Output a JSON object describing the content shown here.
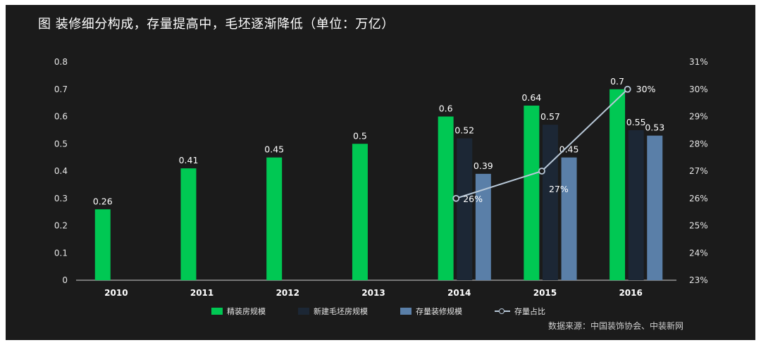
{
  "title": "图  装修细分构成，存量提高中，毛坯逐渐降低（单位：万亿）",
  "source": "数据来源：中国装饰协会、中装新网",
  "colors": {
    "background": "#1b1b1b",
    "jingzhuang": "#00c853",
    "maopi": "#1c2735",
    "cunliang": "#5a7fa8",
    "ratio_line": "#b8c8d8",
    "text": "#ffffff"
  },
  "legend": [
    {
      "label": "精装房规模",
      "color": "#00c853"
    },
    {
      "label": "新建毛坯房规模",
      "color": "#1c2735"
    },
    {
      "label": "存量装修规模",
      "color": "#5a7fa8"
    },
    {
      "label": "存量占比",
      "color": "#b8c8d8"
    }
  ],
  "chart_data": {
    "type": "bar",
    "categories": [
      "2010",
      "2011",
      "2012",
      "2013",
      "2014",
      "2015",
      "2016"
    ],
    "series": [
      {
        "name": "精装房规模",
        "values": [
          0.26,
          0.41,
          0.45,
          0.5,
          0.6,
          0.64,
          0.7
        ]
      },
      {
        "name": "新建毛坯房规模",
        "values": [
          null,
          null,
          null,
          null,
          0.52,
          0.57,
          0.55
        ]
      },
      {
        "name": "存量装修规模",
        "values": [
          null,
          null,
          null,
          null,
          0.39,
          0.45,
          0.53
        ]
      }
    ],
    "line_series": {
      "name": "存量占比",
      "values": [
        null,
        null,
        null,
        null,
        26,
        27,
        30
      ],
      "labels": [
        null,
        null,
        null,
        null,
        "26%",
        "27%",
        "30%"
      ]
    },
    "ylim": [
      0,
      0.8
    ],
    "yticks": [
      "0",
      "0.1",
      "0.2",
      "0.3",
      "0.4",
      "0.5",
      "0.6",
      "0.7",
      "0.8"
    ],
    "y2lim": [
      23,
      31
    ],
    "y2ticks": [
      "23%",
      "24%",
      "25%",
      "26%",
      "27%",
      "28%",
      "29%",
      "30%",
      "31%"
    ],
    "legend_position": "bottom",
    "grid": false
  }
}
